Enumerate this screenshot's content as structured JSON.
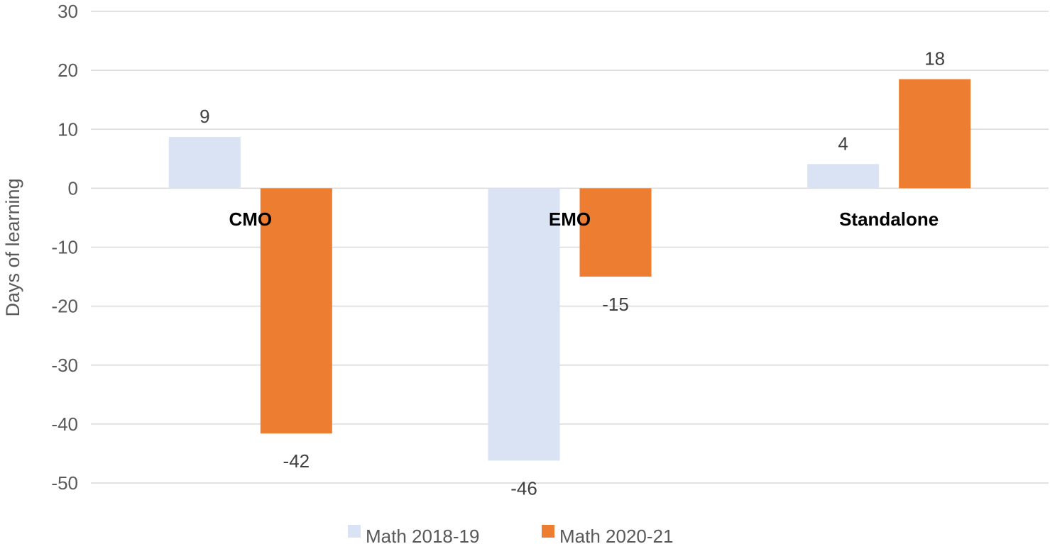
{
  "chart_data": {
    "type": "bar",
    "title": "",
    "xlabel": "",
    "ylabel": "Days of learning",
    "ylim": [
      -50,
      30
    ],
    "yticks": [
      30,
      20,
      10,
      0,
      -10,
      -20,
      -30,
      -40,
      -50
    ],
    "grid": true,
    "legend_position": "bottom",
    "categories": [
      "CMO",
      "EMO",
      "Standalone"
    ],
    "series": [
      {
        "name": "Math 2018-19",
        "color": "#dae3f3",
        "values": [
          8.7,
          -46.2,
          4.1
        ],
        "labels": [
          "9",
          "-46",
          "4"
        ]
      },
      {
        "name": "Math 2020-21",
        "color": "#ed7d31",
        "values": [
          -41.6,
          -15,
          18.5
        ],
        "labels": [
          "-42",
          "-15",
          "18"
        ]
      }
    ]
  }
}
